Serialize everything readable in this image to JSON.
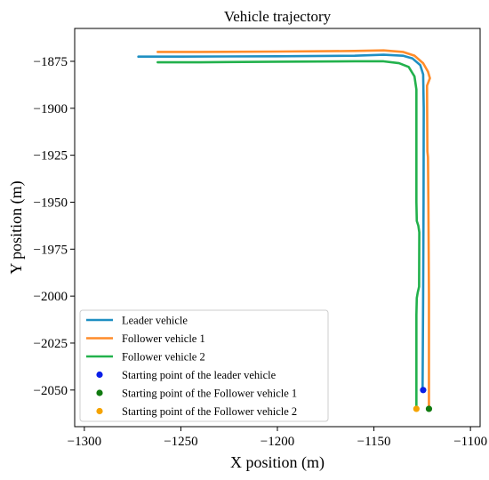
{
  "chart_data": {
    "type": "line",
    "title": "Vehicle trajectory",
    "xlabel": "X position (m)",
    "ylabel": "Y position (m)",
    "xlim": [
      -1305,
      -1095
    ],
    "ylim": [
      -2069.5,
      -1857.5
    ],
    "xticks": [
      -1300,
      -1250,
      -1200,
      -1150,
      -1100
    ],
    "yticks": [
      -1875,
      -1900,
      -1925,
      -1950,
      -1975,
      -2000,
      -2025,
      -2050
    ],
    "xtick_labels": [
      "−1300",
      "−1250",
      "−1200",
      "−1150",
      "−1100"
    ],
    "ytick_labels": [
      "−1875",
      "−1900",
      "−1925",
      "−1950",
      "−1975",
      "−2000",
      "−2025",
      "−2050"
    ],
    "grid": false,
    "legend_position": "lower-left",
    "series": [
      {
        "name": "Leader vehicle",
        "kind": "line",
        "color": "#1f8fc2",
        "x": [
          -1272,
          -1250,
          -1200,
          -1160,
          -1145,
          -1135,
          -1130,
          -1126,
          -1124.5,
          -1124.2,
          -1124.3,
          -1124.5,
          -1124.8
        ],
        "y": [
          -1872.5,
          -1872.5,
          -1872.3,
          -1872,
          -1871.5,
          -1872,
          -1873.5,
          -1877,
          -1882,
          -1900,
          -1950,
          -2000,
          -2050
        ]
      },
      {
        "name": "Follower vehicle 1",
        "kind": "line",
        "color": "#ff8c2a",
        "x": [
          -1262,
          -1240,
          -1200,
          -1160,
          -1145,
          -1135,
          -1129,
          -1124.5,
          -1122,
          -1121,
          -1122.5,
          -1122.3,
          -1122,
          -1121.8,
          -1121.5,
          -1121.5
        ],
        "y": [
          -1870,
          -1870,
          -1869.8,
          -1869.5,
          -1869.2,
          -1870,
          -1872,
          -1876,
          -1880.5,
          -1884,
          -1888,
          -1923,
          -1926,
          -1950,
          -2000,
          -2060
        ]
      },
      {
        "name": "Follower vehicle 2",
        "kind": "line",
        "color": "#22b14c",
        "x": [
          -1262,
          -1240,
          -1200,
          -1160,
          -1145,
          -1137,
          -1132,
          -1129,
          -1128,
          -1128,
          -1127.8,
          -1127,
          -1126.5,
          -1126.6,
          -1127.3,
          -1127.8,
          -1128,
          -1128
        ],
        "y": [
          -1875.5,
          -1875.5,
          -1875.2,
          -1875,
          -1875,
          -1876,
          -1878,
          -1883,
          -1890,
          -1950,
          -1960,
          -1962.5,
          -1966,
          -1995,
          -1998,
          -2001,
          -2010,
          -2060
        ]
      },
      {
        "name": "Starting point of the leader vehicle",
        "kind": "point",
        "color": "#0a1ee8",
        "x": [
          -1124.5
        ],
        "y": [
          -2050
        ]
      },
      {
        "name": "Starting point of the Follower vehicle 1",
        "kind": "point",
        "color": "#107a10",
        "x": [
          -1121.5
        ],
        "y": [
          -2060
        ]
      },
      {
        "name": "Starting point of the Follower vehicle 2",
        "kind": "point",
        "color": "#f5a300",
        "x": [
          -1128
        ],
        "y": [
          -2060
        ]
      }
    ]
  }
}
